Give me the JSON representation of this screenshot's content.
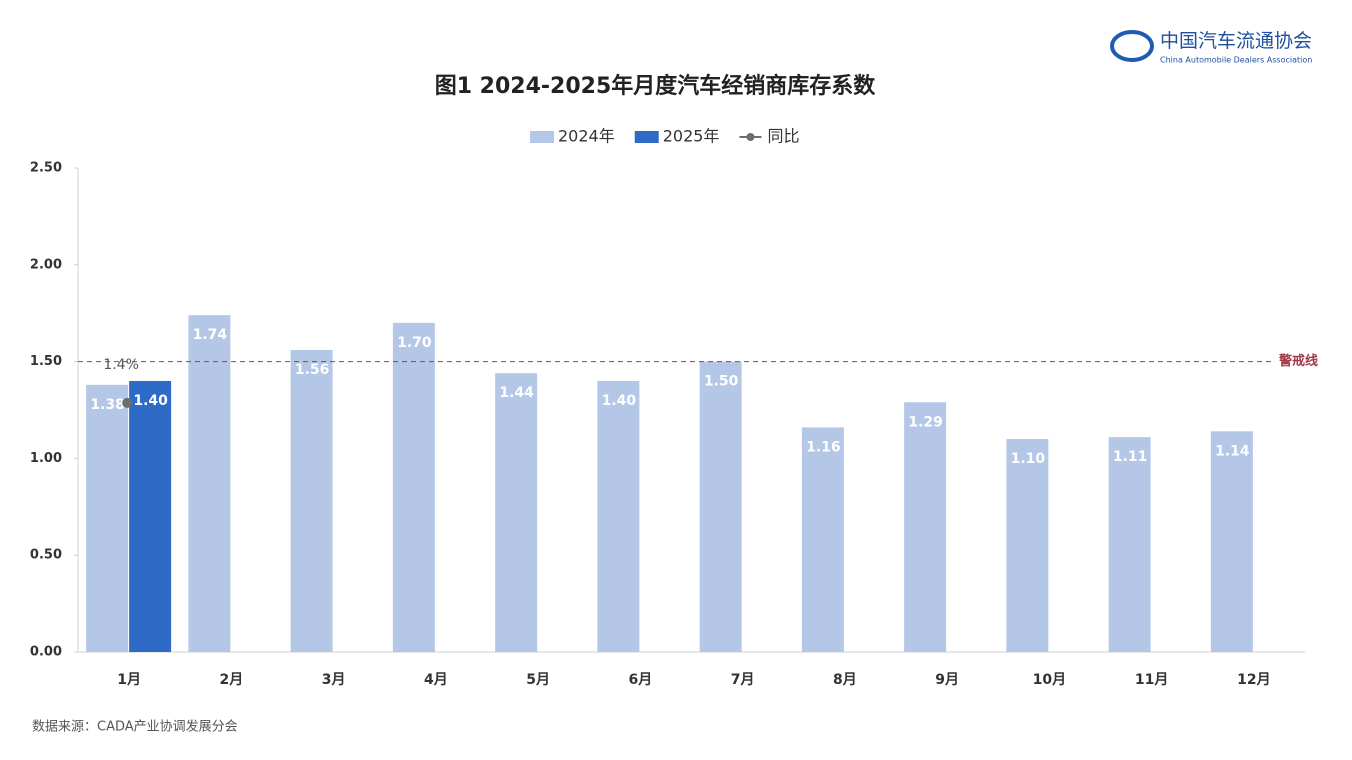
{
  "logo": {
    "name": "中国汽车流通协会",
    "subtitle": "China Automobile Dealers Association"
  },
  "chart_data": {
    "type": "bar",
    "title": "图1  2024-2025年月度汽车经销商库存系数",
    "categories": [
      "1月",
      "2月",
      "3月",
      "4月",
      "5月",
      "6月",
      "7月",
      "8月",
      "9月",
      "10月",
      "11月",
      "12月"
    ],
    "series": [
      {
        "name": "2024年",
        "color": "#b4c7e7",
        "values": [
          1.38,
          1.74,
          1.56,
          1.7,
          1.44,
          1.4,
          1.5,
          1.16,
          1.29,
          1.1,
          1.11,
          1.14
        ],
        "value_labels": [
          "1.38",
          "1.74",
          "1.56",
          "1.70",
          "1.44",
          "1.40",
          "1.50",
          "1.16",
          "1.29",
          "1.10",
          "1.11",
          "1.14"
        ]
      },
      {
        "name": "2025年",
        "color": "#2e6bc6",
        "values": [
          1.4,
          null,
          null,
          null,
          null,
          null,
          null,
          null,
          null,
          null,
          null,
          null
        ],
        "value_labels": [
          "1.40",
          null,
          null,
          null,
          null,
          null,
          null,
          null,
          null,
          null,
          null,
          null
        ]
      },
      {
        "name": "同比",
        "type": "line",
        "color": "#6e6e6e",
        "axis": "y2",
        "values": [
          1.4,
          null,
          null,
          null,
          null,
          null,
          null,
          null,
          null,
          null,
          null,
          null
        ],
        "value_labels": [
          "1.4%",
          null,
          null,
          null,
          null,
          null,
          null,
          null,
          null,
          null,
          null,
          null
        ]
      }
    ],
    "ylim": [
      0,
      2.5
    ],
    "yticks": [
      {
        "value": 0,
        "label": "0.00"
      },
      {
        "value": 0.5,
        "label": "0.50"
      },
      {
        "value": 1,
        "label": "1.00"
      },
      {
        "value": 1.5,
        "label": "1.50"
      },
      {
        "value": 2,
        "label": "2.00"
      },
      {
        "value": 2.5,
        "label": "2.50"
      }
    ],
    "y2lim": [
      0,
      2.72
    ],
    "reference_line": {
      "value": 1.5,
      "label": "警戒线",
      "color": "#a33a4a"
    },
    "legend": "top",
    "source": "数据来源：CADA产业协调发展分会"
  }
}
